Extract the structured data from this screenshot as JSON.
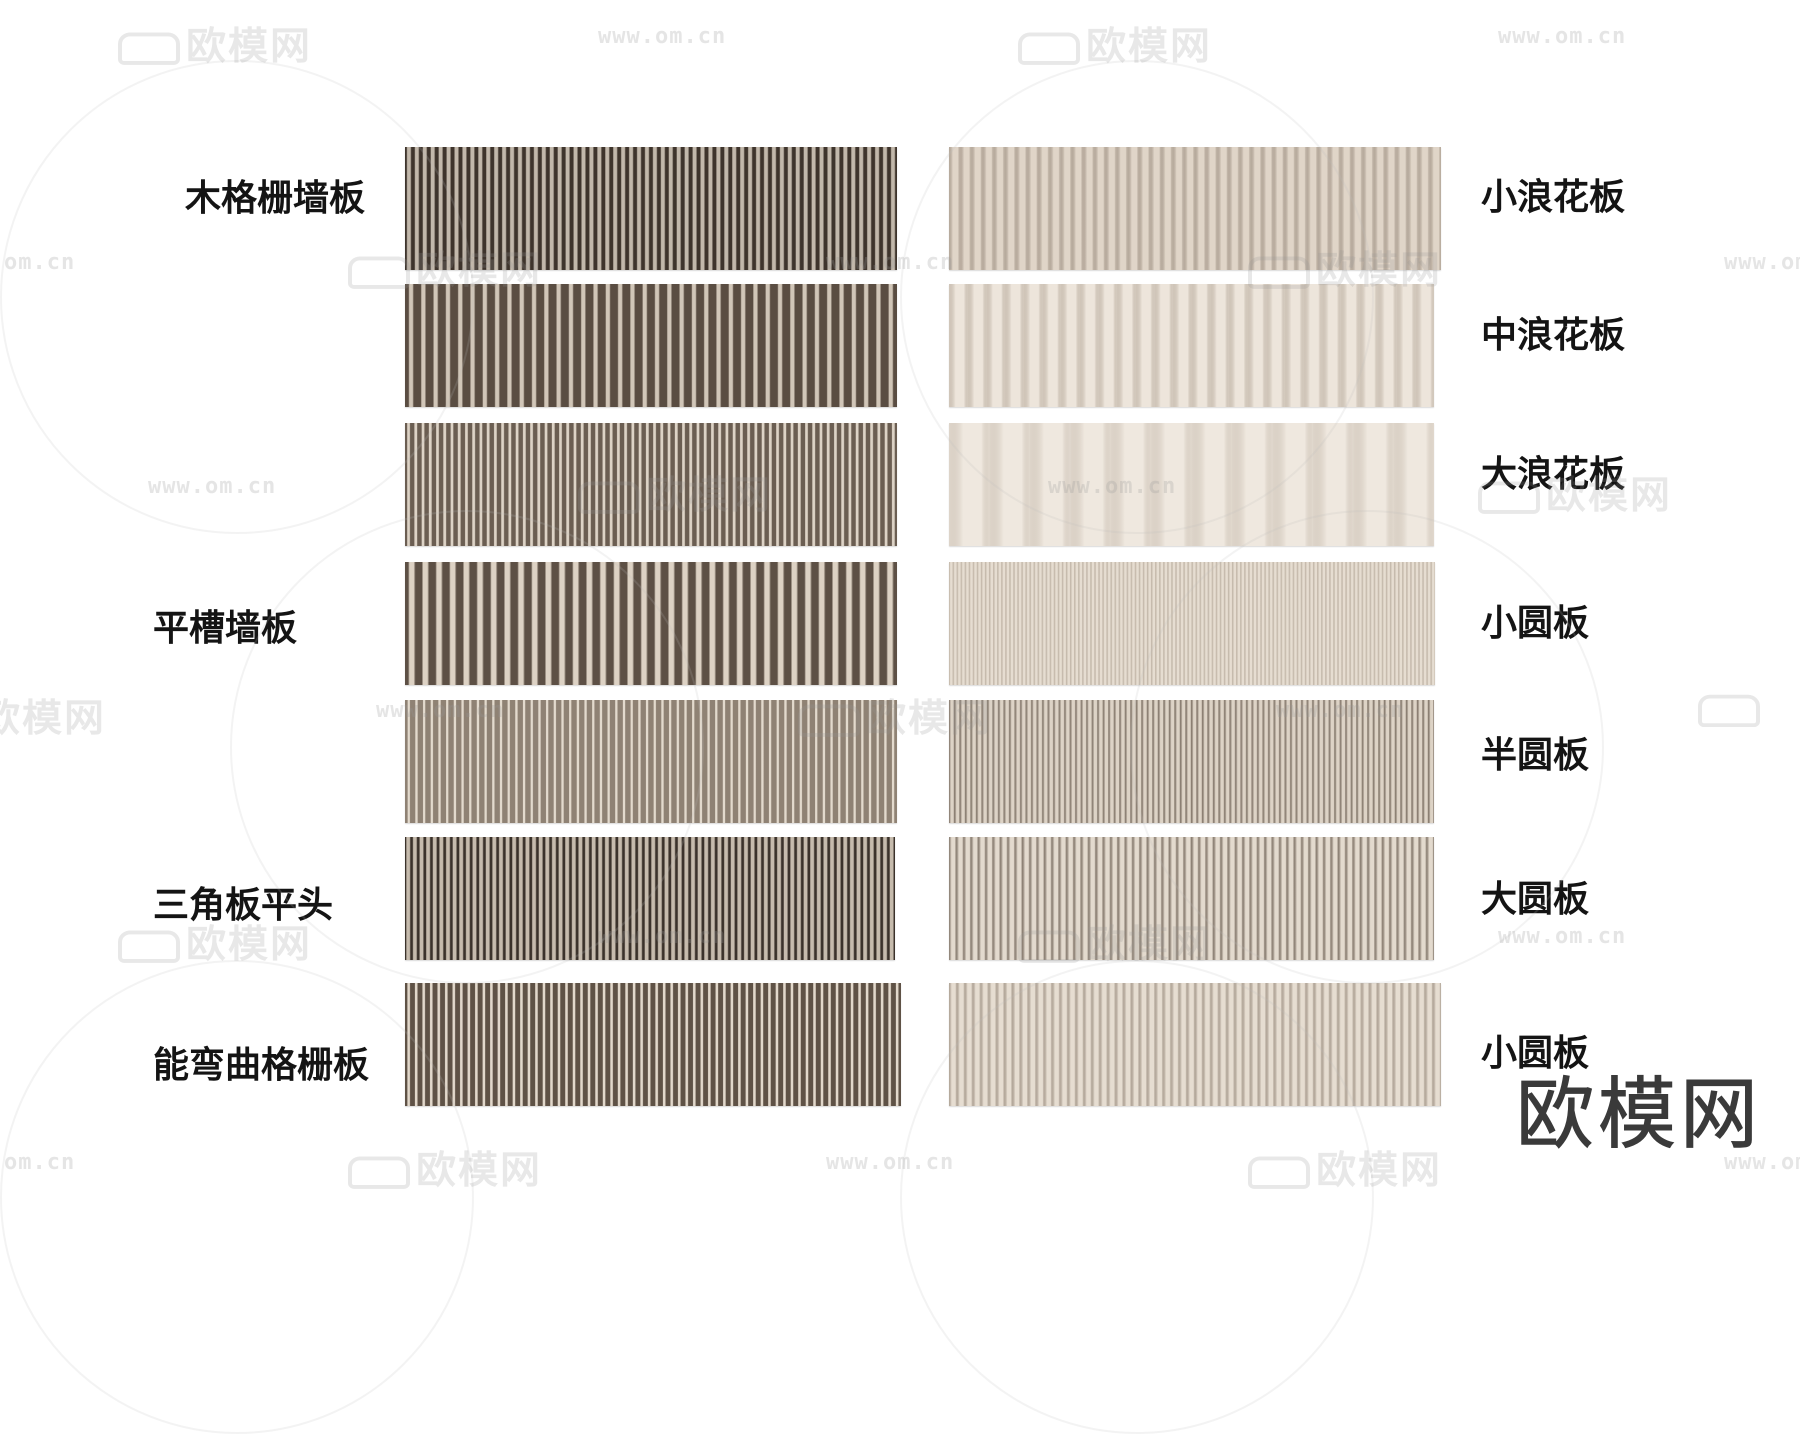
{
  "labels": {
    "left": [
      "木格栅墙板",
      "平槽墙板",
      "三角板平头",
      "能弯曲格栅板"
    ],
    "right": [
      "小浪花板",
      "中浪花板",
      "大浪花板",
      "小圆板",
      "半圆板",
      "大圆板",
      "小圆板"
    ]
  },
  "brand": "欧模网",
  "watermark": {
    "logo_text": "欧模网",
    "url_text": "www.om.cn",
    "partial_url_text": "om.cn"
  },
  "panels": {
    "left": [
      {
        "style": "deep-grille",
        "color_light": "#c2b8ab",
        "color_dark": "#3e342c",
        "stripe_count": 62
      },
      {
        "style": "fin-slat",
        "color_light": "#d1c6b8",
        "color_dark": "#5a4d42",
        "stripe_count": 40
      },
      {
        "style": "thin-slat",
        "color_light": "#ddd3c6",
        "color_dark": "#6b5e52",
        "stripe_count": 68
      },
      {
        "style": "flat-groove",
        "color_light": "#ddd2c4",
        "color_dark": "#5d5045",
        "stripe_count": 36
      },
      {
        "style": "fine-groove",
        "color_light": "#e3dacd",
        "color_dark": "#8f8274",
        "stripe_count": 64
      },
      {
        "style": "triangle-flat",
        "color_light": "#c6bbad",
        "color_dark": "#3b322b",
        "stripe_count": 74
      },
      {
        "style": "bendable-grille",
        "color_light": "#e2d8cb",
        "color_dark": "#5f5246",
        "stripe_count": 66
      }
    ],
    "right": [
      {
        "style": "small-wave",
        "color_light": "#e0d5c8",
        "color_dark": "#8a7c6e",
        "stripe_count": 44
      },
      {
        "style": "medium-wave",
        "color_light": "#ede5db",
        "color_dark": "#a69888",
        "stripe_count": 26
      },
      {
        "style": "large-wave",
        "color_light": "#efe8df",
        "color_dark": "#b8ab9c",
        "stripe_count": 12
      },
      {
        "style": "small-round",
        "color_light": "#e6ddd1",
        "color_dark": "#a39585",
        "stripe_count": 120
      },
      {
        "style": "half-round",
        "color_light": "#ddd3c6",
        "color_dark": "#5e5145",
        "stripe_count": 88
      },
      {
        "style": "large-round",
        "color_light": "#e3dace",
        "color_dark": "#6a5d51",
        "stripe_count": 66
      },
      {
        "style": "small-round-2",
        "color_light": "#e6ddd1",
        "color_dark": "#8e8072",
        "stripe_count": 62
      }
    ]
  }
}
